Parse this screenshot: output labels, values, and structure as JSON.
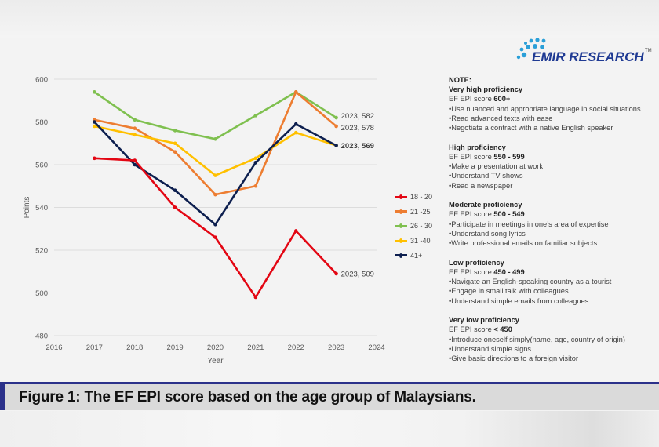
{
  "brand": {
    "name": "EMIR RESEARCH",
    "tm": "TM"
  },
  "chart_data": {
    "type": "line",
    "title": "",
    "xlabel": "Year",
    "ylabel": "Points",
    "xlim": [
      2016,
      2024
    ],
    "ylim": [
      480,
      600
    ],
    "xticks": [
      2016,
      2017,
      2018,
      2019,
      2020,
      2021,
      2022,
      2023,
      2024
    ],
    "yticks": [
      480,
      500,
      520,
      540,
      560,
      580,
      600
    ],
    "grid": true,
    "legend_position": "right",
    "x": [
      2017,
      2018,
      2019,
      2020,
      2021,
      2022,
      2023
    ],
    "series": [
      {
        "name": "18 - 20",
        "color": "#e30613",
        "values": [
          563,
          562,
          540,
          526,
          498,
          529,
          509
        ],
        "end_label": "2023, 509"
      },
      {
        "name": "21 -25",
        "color": "#ed7d31",
        "values": [
          581,
          577,
          566,
          546,
          550,
          594,
          578
        ],
        "end_label": "2023, 578"
      },
      {
        "name": "26 - 30",
        "color": "#7fc04f",
        "values": [
          594,
          581,
          576,
          572,
          583,
          594,
          582
        ],
        "end_label": "2023, 582"
      },
      {
        "name": "31 -40",
        "color": "#ffc000",
        "values": [
          578,
          574,
          570,
          555,
          563,
          575,
          569
        ],
        "end_label": ""
      },
      {
        "name": "41+",
        "color": "#0d1f4f",
        "values": [
          580,
          560,
          548,
          532,
          561,
          579,
          569
        ],
        "end_label": "2023, 569"
      }
    ]
  },
  "notes": {
    "title": "NOTE:",
    "score_prefix": "EF EPI score ",
    "sections": [
      {
        "heading": "Very high proficiency",
        "range": "600+",
        "bullets": [
          "•Use nuanced and appropriate language in social situations",
          "•Read advanced texts with ease",
          "•Negotiate a contract with a native English speaker"
        ]
      },
      {
        "heading": "High proficiency",
        "range": "550 - 599",
        "bullets": [
          "•Make a presentation at work",
          "•Understand TV shows",
          "•Read a newspaper"
        ]
      },
      {
        "heading": "Moderate proficiency",
        "range": "500 - 549",
        "bullets": [
          "•Participate in meetings in one’s area of expertise",
          "•Understand song lyrics",
          "•Write professional emails on familiar subjects"
        ]
      },
      {
        "heading": "Low proficiency",
        "range": "450 - 499",
        "bullets": [
          "•Navigate an English-speaking country as a tourist",
          "•Engage in small talk with colleagues",
          "•Understand simple emails from colleagues"
        ]
      },
      {
        "heading": "Very low proficiency",
        "range": "< 450",
        "bullets": [
          "•Introduce oneself simply(name, age, country of origin)",
          "•Understand simple signs",
          "•Give basic directions to a foreign visitor"
        ]
      }
    ]
  },
  "caption": "Figure 1: The EF EPI score based on the age group of Malaysians."
}
